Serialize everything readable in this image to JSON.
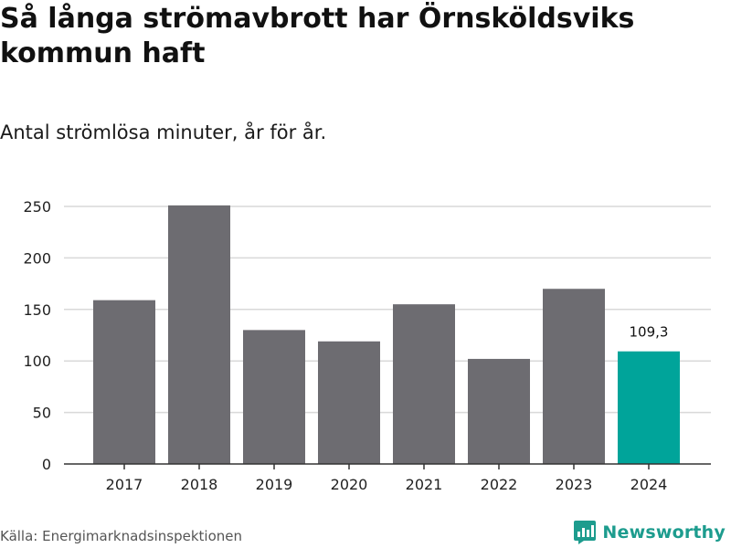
{
  "header": {
    "title": "Så långa strömavbrott har Örnsköldsviks kommun haft",
    "subtitle": "Antal strömlösa minuter, år för år."
  },
  "footer": {
    "source": "Källa: Energimarknadsinspektionen",
    "brand_name": "Newsworthy"
  },
  "colors": {
    "bar": "#6d6c71",
    "highlight": "#00a49a",
    "grid": "#d9d9d9",
    "axis": "#333333",
    "brand": "#1d9c8e"
  },
  "chart_data": {
    "type": "bar",
    "title": "Så långa strömavbrott har Örnsköldsviks kommun haft",
    "subtitle": "Antal strömlösa minuter, år för år.",
    "xlabel": "",
    "ylabel": "",
    "categories": [
      "2017",
      "2018",
      "2019",
      "2020",
      "2021",
      "2022",
      "2023",
      "2024"
    ],
    "values": [
      159,
      251,
      130,
      119,
      155,
      102,
      170,
      109.3
    ],
    "highlight_index": 7,
    "data_labels": [
      {
        "index": 7,
        "text": "109,3"
      }
    ],
    "ylim": [
      0,
      250
    ],
    "yticks": [
      0,
      50,
      100,
      150,
      200,
      250
    ],
    "grid": true,
    "legend": "none"
  }
}
